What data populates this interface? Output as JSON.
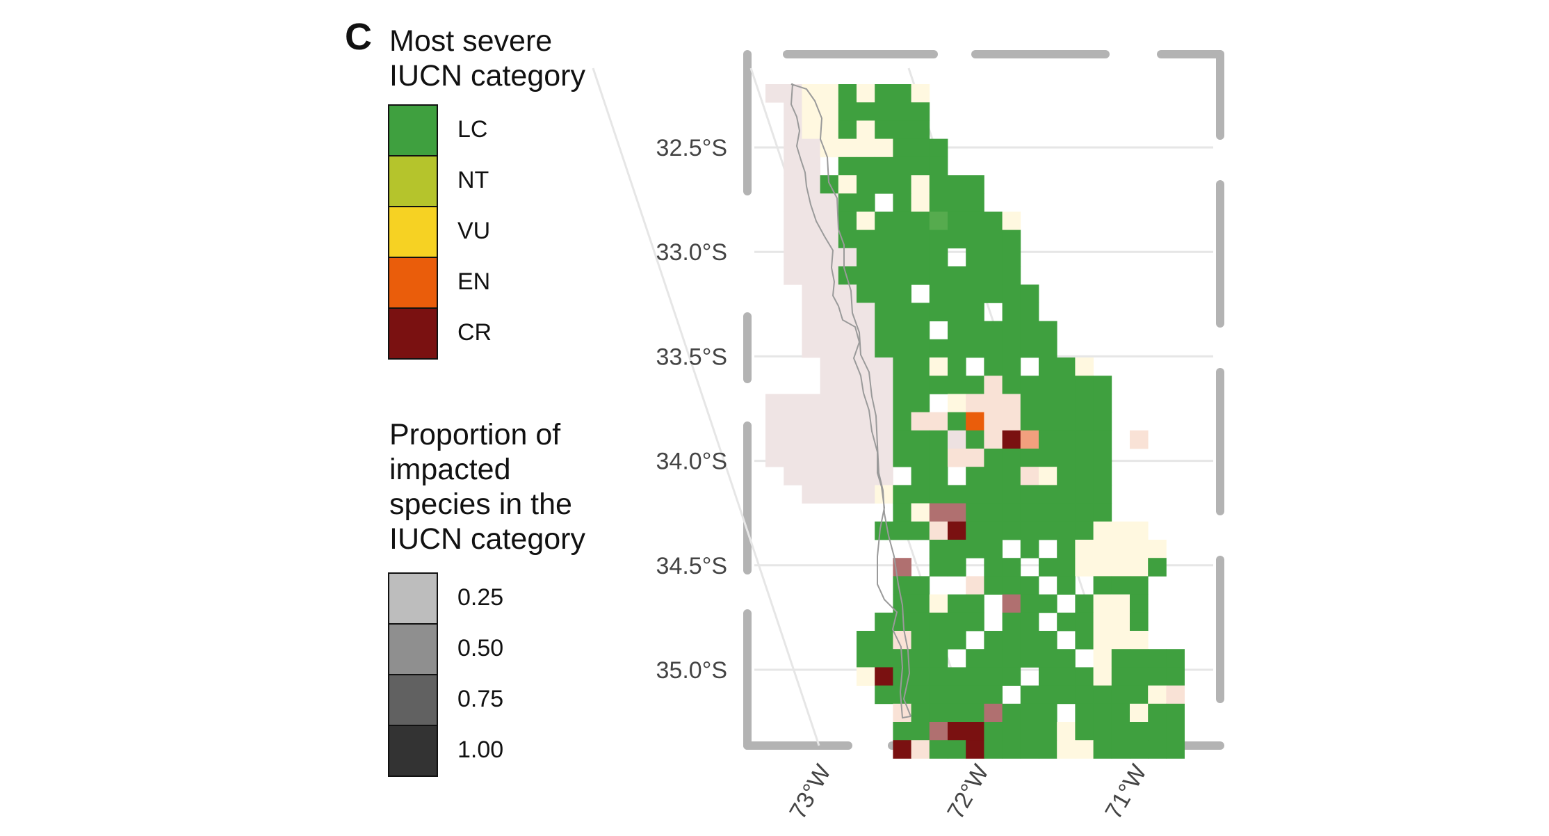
{
  "panel_label": "C",
  "legend_severity": {
    "title": "Most severe\nIUCN category",
    "items": [
      {
        "label": "LC",
        "color": "#3fa03f"
      },
      {
        "label": "NT",
        "color": "#b5c42c"
      },
      {
        "label": "VU",
        "color": "#f6d223"
      },
      {
        "label": "EN",
        "color": "#ea5d0b"
      },
      {
        "label": "CR",
        "color": "#7a1111"
      }
    ]
  },
  "legend_proportion": {
    "title": "Proportion of\nimpacted\nspecies in the\nIUCN category",
    "items": [
      {
        "label": "0.25",
        "value": 0.25,
        "color": "#bdbdbd"
      },
      {
        "label": "0.50",
        "value": 0.5,
        "color": "#8f8f8f"
      },
      {
        "label": "0.75",
        "value": 0.75,
        "color": "#616161"
      },
      {
        "label": "1.00",
        "value": 1.0,
        "color": "#333333"
      }
    ]
  },
  "map": {
    "lat_ticks": [
      "32.5°S",
      "33.0°S",
      "33.5°S",
      "34.0°S",
      "34.5°S",
      "35.0°S"
    ],
    "lat_values": [
      -32.5,
      -33.0,
      -33.5,
      -34.0,
      -34.5,
      -35.0
    ],
    "lon_ticks": [
      "73°W",
      "72°W",
      "71°W"
    ],
    "lon_values": [
      -73,
      -72,
      -71
    ],
    "cell_rows": [
      "..%%%%VVV..",
      "..%%%%%VVVVVVLLLGLLLVL.",
      "...%%%%%VVVVVVLLLLLLL",
      "...%%%%%%VVVVVVLGLLLLLL",
      "...%%%%%%.LLLLLLLLLLLL",
      "...%%%%%%.LLLLLLLLLLLLLLL",
      "...%%%%%%.LLLLLLLLLLLLLLLLL",
      "...%%%%%%.LLLLLLLLLLLLLLLLLL",
      "...%%%%%%%LLLLLLLLLLLLLLLLLLL",
      "....%%%%%%LLLLLLLLLLLLLLLLLLLL",
      "....%%%%%%%LLLLLLLLLLLLLLLLLLLL"
    ]
  }
}
